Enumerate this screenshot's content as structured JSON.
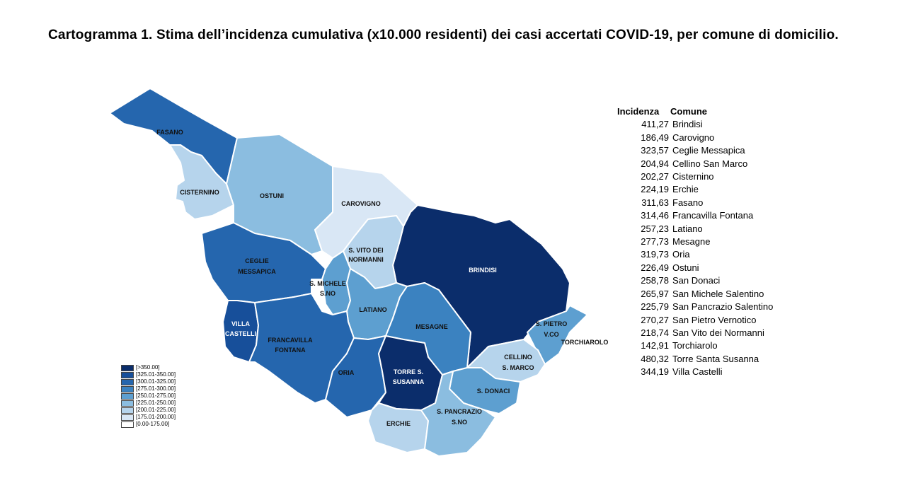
{
  "title": "Cartogramma 1. Stima dell’incidenza cumulativa (x10.000 residenti) dei casi accertati COVID-19, per comune di domicilio.",
  "legend": [
    {
      "label": "[>350.00]",
      "color": "#0b2d6b"
    },
    {
      "label": "[325.01-350.00]",
      "color": "#174f9a"
    },
    {
      "label": "[300.01-325.00]",
      "color": "#2566ae"
    },
    {
      "label": "[275.01-300.00]",
      "color": "#3b82c0"
    },
    {
      "label": "[250.01-275.00]",
      "color": "#5d9fd0"
    },
    {
      "label": "[225.01-250.00]",
      "color": "#8bbde0"
    },
    {
      "label": "[200.01-225.00]",
      "color": "#b6d4ec"
    },
    {
      "label": "[175.01-200.00]",
      "color": "#d9e7f5"
    },
    {
      "label": "[0.00-175.00]",
      "color": "#ffffff"
    }
  ],
  "table": {
    "header": {
      "incidenza": "Incidenza",
      "comune": "Comune"
    },
    "rows": [
      {
        "incidenza": "411,27",
        "comune": "Brindisi"
      },
      {
        "incidenza": "186,49",
        "comune": "Carovigno"
      },
      {
        "incidenza": "323,57",
        "comune": "Ceglie Messapica"
      },
      {
        "incidenza": "204,94",
        "comune": "Cellino San Marco"
      },
      {
        "incidenza": "202,27",
        "comune": "Cisternino"
      },
      {
        "incidenza": "224,19",
        "comune": "Erchie"
      },
      {
        "incidenza": "311,63",
        "comune": "Fasano"
      },
      {
        "incidenza": "314,46",
        "comune": "Francavilla Fontana"
      },
      {
        "incidenza": "257,23",
        "comune": "Latiano"
      },
      {
        "incidenza": "277,73",
        "comune": "Mesagne"
      },
      {
        "incidenza": "319,73",
        "comune": "Oria"
      },
      {
        "incidenza": "226,49",
        "comune": "Ostuni"
      },
      {
        "incidenza": "258,78",
        "comune": "San Donaci"
      },
      {
        "incidenza": "265,97",
        "comune": "San Michele Salentino"
      },
      {
        "incidenza": "225,79",
        "comune": "San Pancrazio Salentino"
      },
      {
        "incidenza": "270,27",
        "comune": "San Pietro Vernotico"
      },
      {
        "incidenza": "218,74",
        "comune": "San Vito dei Normanni"
      },
      {
        "incidenza": "142,91",
        "comune": "Torchiarolo"
      },
      {
        "incidenza": "480,32",
        "comune": "Torre Santa Susanna"
      },
      {
        "incidenza": "344,19",
        "comune": "Villa Castelli"
      }
    ]
  },
  "map": {
    "regions": [
      {
        "id": "fasano",
        "color": "#2566ae",
        "label": [
          "FASANO"
        ]
      },
      {
        "id": "cisternino",
        "color": "#b6d4ec",
        "label": [
          "CISTERNINO"
        ]
      },
      {
        "id": "ostuni",
        "color": "#8bbde0",
        "label": [
          "OSTUNI"
        ]
      },
      {
        "id": "carovigno",
        "color": "#d9e7f5",
        "label": [
          "CAROVIGNO"
        ]
      },
      {
        "id": "brindisi",
        "color": "#0b2d6b",
        "label": [
          "BRINDISI"
        ]
      },
      {
        "id": "ceglie",
        "color": "#2566ae",
        "label": [
          "CEGLIE",
          "MESSAPICA"
        ]
      },
      {
        "id": "svito",
        "color": "#b6d4ec",
        "label": [
          "S. VITO DEI",
          "NORMANNI"
        ]
      },
      {
        "id": "smichele",
        "color": "#5d9fd0",
        "label": [
          "S. MICHELE",
          "S.NO"
        ]
      },
      {
        "id": "latiano",
        "color": "#5d9fd0",
        "label": [
          "LATIANO"
        ]
      },
      {
        "id": "mesagne",
        "color": "#3b82c0",
        "label": [
          "MESAGNE"
        ]
      },
      {
        "id": "villacastelli",
        "color": "#174f9a",
        "label": [
          "VILLA",
          "CASTELLI"
        ]
      },
      {
        "id": "francavilla",
        "color": "#2566ae",
        "label": [
          "FRANCAVILLA",
          "FONTANA"
        ]
      },
      {
        "id": "oria",
        "color": "#2566ae",
        "label": [
          "ORIA"
        ]
      },
      {
        "id": "torress",
        "color": "#0b2d6b",
        "label": [
          "TORRE S.",
          "SUSANNA"
        ]
      },
      {
        "id": "spietro",
        "color": "#5d9fd0",
        "label": [
          "S. PIETRO",
          "V.CO"
        ]
      },
      {
        "id": "torchiarolo",
        "color": "#ffffff",
        "label": [
          "TORCHIAROLO"
        ]
      },
      {
        "id": "cellino",
        "color": "#b6d4ec",
        "label": [
          "CELLINO",
          "S. MARCO"
        ]
      },
      {
        "id": "sdonaci",
        "color": "#5d9fd0",
        "label": [
          "S. DONACI"
        ]
      },
      {
        "id": "erchie",
        "color": "#b6d4ec",
        "label": [
          "ERCHIE"
        ]
      },
      {
        "id": "spancrazio",
        "color": "#8bbde0",
        "label": [
          "S. PANCRAZIO",
          "S.NO"
        ]
      }
    ]
  }
}
